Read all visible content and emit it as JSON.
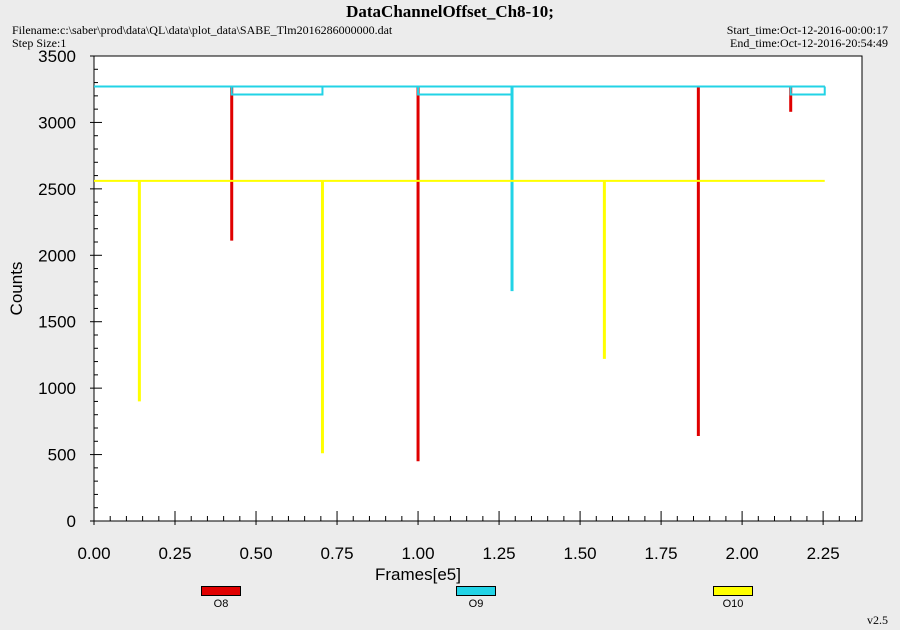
{
  "header": {
    "title": "DataChannelOffset_Ch8-10;",
    "filename": "Filename:c:\\saber\\prod\\data\\QL\\data\\plot_data\\SABE_Tlm2016286000000.dat",
    "step_size": "Step Size:1",
    "start_time": "Start_time:Oct-12-2016-00:00:17",
    "end_time": "End_time:Oct-12-2016-20:54:49",
    "version": "v2.5"
  },
  "colors": {
    "O8": "#e00000",
    "O9": "#22d3e6",
    "O10": "#ffff00"
  },
  "chart_data": {
    "type": "line",
    "xlabel": "Frames[e5]",
    "ylabel": "Counts",
    "xlim": [
      0,
      2.37
    ],
    "ylim": [
      0,
      3500
    ],
    "x_ticks": [
      "0.00",
      "0.25",
      "0.50",
      "0.75",
      "1.00",
      "1.25",
      "1.50",
      "1.75",
      "2.00",
      "2.25"
    ],
    "y_ticks": [
      "0",
      "500",
      "1000",
      "1500",
      "2000",
      "2500",
      "3000",
      "3500"
    ],
    "grid": false,
    "legend_placement": "bottom",
    "series": [
      {
        "name": "O8",
        "base": [
          [
            0.425,
            3270
          ],
          [
            2.255,
            3270
          ]
        ],
        "segments": [
          [
            0.0,
            3270
          ],
          [
            0.425,
            3270
          ]
        ],
        "spikes": [
          [
            0.425,
            2110
          ],
          [
            1.0,
            450
          ],
          [
            1.865,
            640
          ],
          [
            2.15,
            3080
          ]
        ]
      },
      {
        "name": "O9",
        "base": [
          [
            0.0,
            3270
          ],
          [
            2.255,
            3270
          ]
        ],
        "steps": [
          [
            0.425,
            0.705,
            3210
          ],
          [
            1.0,
            1.29,
            3210
          ],
          [
            2.15,
            2.255,
            3210
          ]
        ],
        "spikes": [
          [
            1.29,
            1730
          ]
        ]
      },
      {
        "name": "O10",
        "base": [
          [
            0.0,
            2560
          ],
          [
            2.255,
            2560
          ]
        ],
        "spikes": [
          [
            0.14,
            900
          ],
          [
            0.705,
            510
          ],
          [
            1.575,
            1220
          ]
        ]
      }
    ],
    "legend": [
      {
        "name": "O8"
      },
      {
        "name": "O9"
      },
      {
        "name": "O10"
      }
    ]
  }
}
